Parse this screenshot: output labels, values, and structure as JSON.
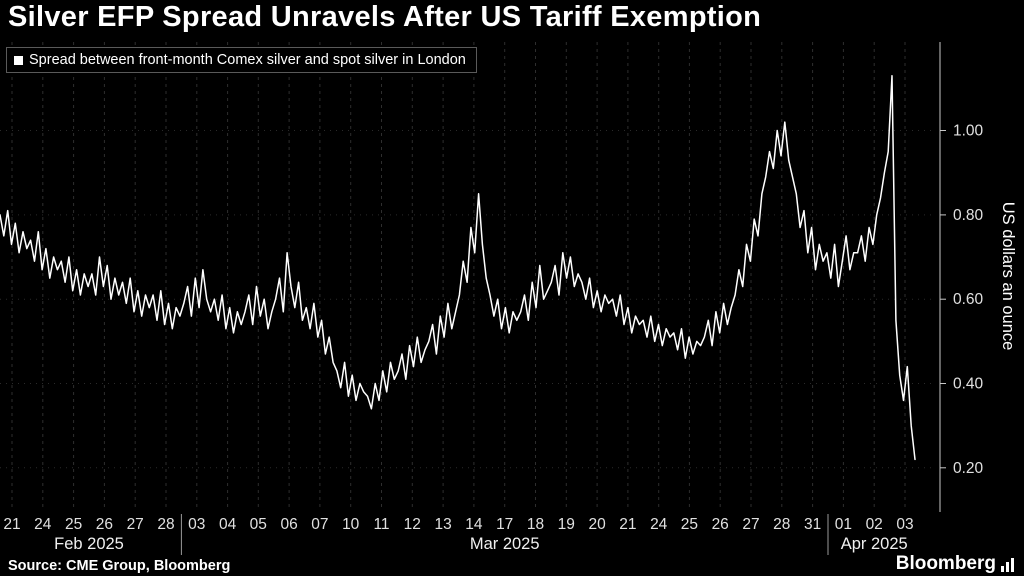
{
  "header": {
    "title": "Silver EFP Spread Unravels After US Tariff Exemption"
  },
  "legend": {
    "swatch_icon": "white-square",
    "label": "Spread between front-month Comex silver and spot silver in London"
  },
  "footer": {
    "source": "Source: CME Group, Bloomberg",
    "brand": "Bloomberg",
    "brand_icon": "mini-bar-chart"
  },
  "colors": {
    "background": "#000000",
    "line": "#ffffff",
    "grid_vertical": "#2e2e2e",
    "grid_horizontal": "#2a2a2a",
    "axis": "#c8c8c8",
    "tick_text": "#e0e0e0",
    "month_text": "#f0f0f0",
    "separator": "#9a9a9a"
  },
  "chart_data": {
    "type": "line",
    "title": "Silver EFP Spread Unravels After US Tariff Exemption",
    "series_name": "Spread between front-month Comex silver and spot silver in London",
    "xlabel": "",
    "ylabel": "US dollars an ounce",
    "ylim": [
      0.1,
      1.21
    ],
    "yticks": [
      0.2,
      0.4,
      0.6,
      0.8,
      1.0
    ],
    "grid": true,
    "legend_position": "top-left",
    "x_tick_labels": [
      "21",
      "24",
      "25",
      "26",
      "27",
      "28",
      "03",
      "04",
      "05",
      "06",
      "07",
      "10",
      "11",
      "12",
      "13",
      "14",
      "17",
      "18",
      "19",
      "20",
      "21",
      "24",
      "25",
      "26",
      "27",
      "28",
      "31",
      "01",
      "02",
      "03"
    ],
    "month_groups": [
      {
        "label": "Feb 2025",
        "start": 0,
        "end": 5
      },
      {
        "label": "Mar 2025",
        "start": 6,
        "end": 26
      },
      {
        "label": "Apr 2025",
        "start": 27,
        "end": 29
      }
    ],
    "points_per_day": 8,
    "values": [
      0.8,
      0.75,
      0.81,
      0.73,
      0.78,
      0.71,
      0.76,
      0.72,
      0.74,
      0.69,
      0.76,
      0.67,
      0.72,
      0.65,
      0.7,
      0.67,
      0.69,
      0.64,
      0.7,
      0.62,
      0.67,
      0.61,
      0.66,
      0.63,
      0.66,
      0.61,
      0.7,
      0.63,
      0.68,
      0.6,
      0.65,
      0.61,
      0.64,
      0.59,
      0.65,
      0.57,
      0.62,
      0.56,
      0.61,
      0.58,
      0.61,
      0.55,
      0.62,
      0.54,
      0.59,
      0.53,
      0.58,
      0.56,
      0.59,
      0.63,
      0.56,
      0.65,
      0.58,
      0.67,
      0.6,
      0.57,
      0.6,
      0.55,
      0.61,
      0.53,
      0.58,
      0.52,
      0.57,
      0.54,
      0.57,
      0.61,
      0.54,
      0.63,
      0.56,
      0.6,
      0.53,
      0.57,
      0.6,
      0.65,
      0.57,
      0.71,
      0.63,
      0.58,
      0.64,
      0.55,
      0.58,
      0.53,
      0.59,
      0.51,
      0.55,
      0.47,
      0.51,
      0.45,
      0.43,
      0.39,
      0.45,
      0.37,
      0.42,
      0.36,
      0.4,
      0.38,
      0.37,
      0.34,
      0.4,
      0.36,
      0.43,
      0.38,
      0.45,
      0.41,
      0.43,
      0.47,
      0.41,
      0.49,
      0.44,
      0.51,
      0.45,
      0.48,
      0.5,
      0.54,
      0.47,
      0.56,
      0.51,
      0.59,
      0.53,
      0.57,
      0.61,
      0.69,
      0.64,
      0.77,
      0.71,
      0.85,
      0.73,
      0.65,
      0.61,
      0.56,
      0.6,
      0.53,
      0.58,
      0.52,
      0.57,
      0.55,
      0.57,
      0.61,
      0.55,
      0.64,
      0.58,
      0.68,
      0.6,
      0.62,
      0.64,
      0.68,
      0.61,
      0.71,
      0.65,
      0.7,
      0.63,
      0.66,
      0.64,
      0.6,
      0.65,
      0.58,
      0.62,
      0.57,
      0.61,
      0.59,
      0.6,
      0.56,
      0.61,
      0.54,
      0.58,
      0.52,
      0.56,
      0.54,
      0.55,
      0.51,
      0.56,
      0.5,
      0.54,
      0.49,
      0.53,
      0.51,
      0.52,
      0.48,
      0.53,
      0.46,
      0.51,
      0.47,
      0.5,
      0.49,
      0.51,
      0.55,
      0.49,
      0.57,
      0.52,
      0.59,
      0.54,
      0.58,
      0.61,
      0.67,
      0.63,
      0.73,
      0.69,
      0.79,
      0.75,
      0.85,
      0.89,
      0.95,
      0.91,
      1.0,
      0.94,
      1.02,
      0.93,
      0.89,
      0.85,
      0.77,
      0.81,
      0.71,
      0.77,
      0.67,
      0.73,
      0.69,
      0.71,
      0.65,
      0.73,
      0.63,
      0.69,
      0.75,
      0.67,
      0.71,
      0.71,
      0.75,
      0.69,
      0.77,
      0.73,
      0.8,
      0.84,
      0.9,
      0.95,
      1.13,
      0.55,
      0.42,
      0.36,
      0.44,
      0.3,
      0.22
    ]
  }
}
